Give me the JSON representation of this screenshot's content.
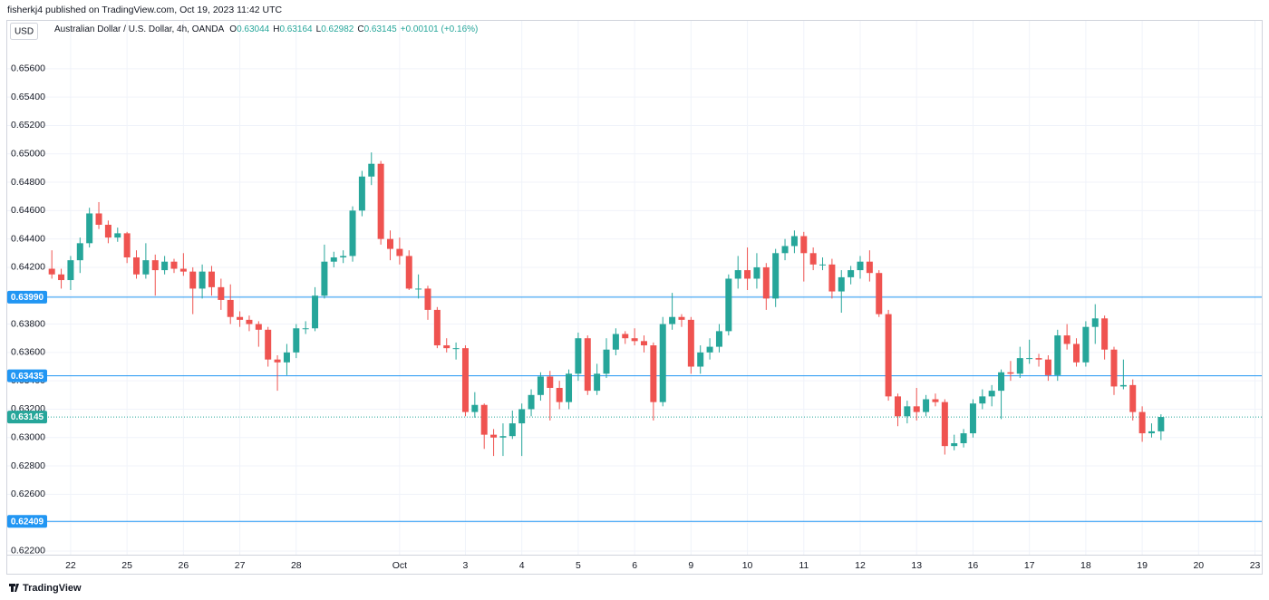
{
  "header": {
    "publisher": "fisherkj4 published on TradingView.com, Oct 19, 2023 11:42 UTC"
  },
  "chart_data": {
    "type": "candlestick",
    "currency": "USD",
    "symbol": "Australian Dollar / U.S. Dollar, 4h, OANDA",
    "legend": [
      {
        "key": "O",
        "value": "0.63044"
      },
      {
        "key": "H",
        "value": "0.63164"
      },
      {
        "key": "L",
        "value": "0.62982"
      },
      {
        "key": "C",
        "value": "0.63145"
      }
    ],
    "change": "+0.00101 (+0.16%)",
    "up_color": "#26a69a",
    "down_color": "#ef5350",
    "level_color": "#2196f3",
    "grid": true,
    "categories": [
      null,
      null,
      "22",
      null,
      null,
      null,
      null,
      null,
      "25",
      null,
      null,
      null,
      null,
      null,
      "26",
      null,
      null,
      null,
      null,
      null,
      "27",
      null,
      null,
      null,
      null,
      null,
      "28",
      null,
      null,
      null,
      null,
      null,
      null,
      null,
      null,
      null,
      null,
      "Oct",
      null,
      null,
      null,
      null,
      null,
      null,
      "3",
      null,
      null,
      null,
      null,
      null,
      "4",
      null,
      null,
      null,
      null,
      null,
      "5",
      null,
      null,
      null,
      null,
      null,
      "6",
      null,
      null,
      null,
      null,
      null,
      "9",
      null,
      null,
      null,
      null,
      null,
      "10",
      null,
      null,
      null,
      null,
      null,
      "11",
      null,
      null,
      null,
      null,
      null,
      "12",
      null,
      null,
      null,
      null,
      null,
      "13",
      null,
      null,
      null,
      null,
      null,
      "16",
      null,
      null,
      null,
      null,
      null,
      "17",
      null,
      null,
      null,
      null,
      null,
      "18",
      null,
      null,
      null,
      null,
      null,
      "19",
      null,
      null,
      null,
      null,
      null,
      "20",
      null,
      null,
      null,
      null,
      null,
      "23"
    ],
    "open": [
      0.6419,
      0.6415,
      0.6411,
      0.6425,
      0.6437,
      0.6458,
      0.645,
      0.6441,
      0.6444,
      0.6427,
      0.6415,
      0.6425,
      0.6418,
      0.6424,
      0.6419,
      0.6417,
      0.6405,
      0.6417,
      0.6406,
      0.6397,
      0.6385,
      0.6383,
      0.638,
      0.6376,
      0.6355,
      0.6353,
      0.636,
      0.6377,
      0.6377,
      0.64,
      0.6424,
      0.6427,
      0.6428,
      0.646,
      0.6484,
      0.6493,
      0.644,
      0.6433,
      0.6428,
      0.6405,
      0.6405,
      0.639,
      0.6365,
      0.6363,
      0.6363,
      0.6318,
      0.6323,
      0.6302,
      0.63,
      0.6301,
      0.631,
      0.632,
      0.633,
      0.6343,
      0.6335,
      0.6325,
      0.6345,
      0.637,
      0.6333,
      0.6345,
      0.6362,
      0.6373,
      0.637,
      0.6368,
      0.6365,
      0.6325,
      0.638,
      0.6385,
      0.6383,
      0.635,
      0.636,
      0.6364,
      0.6375,
      0.6412,
      0.6418,
      0.6412,
      0.642,
      0.6398,
      0.643,
      0.6435,
      0.6442,
      0.643,
      0.6422,
      0.6422,
      0.6403,
      0.6413,
      0.6418,
      0.6424,
      0.6416,
      0.6387,
      0.6329,
      0.6315,
      0.6322,
      0.6318,
      0.6327,
      0.6325,
      0.6294,
      0.6296,
      0.6303,
      0.6324,
      0.6329,
      0.6333,
      0.6346,
      0.6345,
      0.6356,
      0.6356,
      0.6355,
      0.6344,
      0.6372,
      0.6366,
      0.6353,
      0.6378,
      0.6384,
      0.6362,
      0.6336,
      0.6337,
      0.6318,
      0.6303,
      0.63044,
      null,
      null,
      null,
      null,
      null,
      null,
      null,
      null,
      null,
      null
    ],
    "high": [
      0.6432,
      0.6419,
      0.6428,
      0.6441,
      0.6462,
      0.6466,
      0.6453,
      0.6448,
      0.6445,
      0.6432,
      0.6437,
      0.6429,
      0.6428,
      0.6426,
      0.643,
      0.642,
      0.6422,
      0.6421,
      0.6412,
      0.6408,
      0.6389,
      0.6386,
      0.6382,
      0.6378,
      0.6358,
      0.6366,
      0.638,
      0.6382,
      0.6406,
      0.6436,
      0.6431,
      0.6432,
      0.6463,
      0.6488,
      0.6501,
      0.6495,
      0.6446,
      0.6441,
      0.6432,
      0.6415,
      0.6407,
      0.6392,
      0.637,
      0.6367,
      0.6365,
      0.6332,
      0.6324,
      0.6306,
      0.631,
      0.6319,
      0.6324,
      0.6334,
      0.6346,
      0.6347,
      0.634,
      0.6348,
      0.6374,
      0.6372,
      0.6352,
      0.637,
      0.6377,
      0.6375,
      0.6377,
      0.6372,
      0.6367,
      0.6385,
      0.6402,
      0.6387,
      0.6385,
      0.6365,
      0.637,
      0.638,
      0.6415,
      0.6428,
      0.6434,
      0.643,
      0.6423,
      0.6433,
      0.644,
      0.6446,
      0.6445,
      0.6434,
      0.6427,
      0.6426,
      0.6418,
      0.6421,
      0.6428,
      0.6432,
      0.6418,
      0.639,
      0.6331,
      0.6326,
      0.6335,
      0.633,
      0.6331,
      0.6327,
      0.6302,
      0.6306,
      0.6327,
      0.6334,
      0.6337,
      0.6348,
      0.6354,
      0.6364,
      0.6369,
      0.6359,
      0.6358,
      0.6376,
      0.638,
      0.637,
      0.6382,
      0.6394,
      0.6386,
      0.6364,
      0.6355,
      0.6341,
      0.6322,
      0.631,
      0.63164,
      null,
      null,
      null,
      null,
      null,
      null,
      null,
      null,
      null,
      null
    ],
    "low": [
      0.6412,
      0.6405,
      0.6404,
      0.6416,
      0.6434,
      0.6447,
      0.6437,
      0.6438,
      0.6423,
      0.6412,
      0.6412,
      0.64,
      0.6415,
      0.6416,
      0.6414,
      0.6387,
      0.6398,
      0.64,
      0.639,
      0.638,
      0.6378,
      0.6375,
      0.6364,
      0.635,
      0.6333,
      0.6344,
      0.6356,
      0.6373,
      0.6375,
      0.6398,
      0.642,
      0.6423,
      0.6424,
      0.6456,
      0.6478,
      0.6436,
      0.6425,
      0.6422,
      0.6404,
      0.6398,
      0.6383,
      0.6363,
      0.636,
      0.6355,
      0.6315,
      0.6314,
      0.6292,
      0.6287,
      0.6287,
      0.6299,
      0.6287,
      0.6315,
      0.6326,
      0.6312,
      0.632,
      0.632,
      0.634,
      0.633,
      0.633,
      0.6342,
      0.6358,
      0.6366,
      0.6365,
      0.636,
      0.6312,
      0.6322,
      0.6376,
      0.6378,
      0.6345,
      0.6345,
      0.6355,
      0.636,
      0.6372,
      0.6405,
      0.6404,
      0.6405,
      0.639,
      0.6392,
      0.6425,
      0.643,
      0.641,
      0.6418,
      0.6418,
      0.6398,
      0.6388,
      0.6408,
      0.6412,
      0.641,
      0.6385,
      0.6326,
      0.6308,
      0.631,
      0.6312,
      0.6315,
      0.6322,
      0.6288,
      0.6291,
      0.6293,
      0.63,
      0.632,
      0.6322,
      0.6313,
      0.634,
      0.6342,
      0.6352,
      0.635,
      0.634,
      0.634,
      0.6362,
      0.635,
      0.635,
      0.6366,
      0.6355,
      0.633,
      0.6334,
      0.6312,
      0.6297,
      0.63,
      0.62982,
      null,
      null,
      null,
      null,
      null,
      null,
      null,
      null,
      null,
      null
    ],
    "close": [
      0.6415,
      0.6411,
      0.6425,
      0.6437,
      0.6458,
      0.645,
      0.6441,
      0.6444,
      0.6427,
      0.6415,
      0.6425,
      0.6418,
      0.6424,
      0.6419,
      0.6417,
      0.6405,
      0.6417,
      0.6406,
      0.6397,
      0.6385,
      0.6383,
      0.638,
      0.6376,
      0.6355,
      0.6353,
      0.636,
      0.6377,
      0.6377,
      0.64,
      0.6424,
      0.6427,
      0.6428,
      0.646,
      0.6484,
      0.6493,
      0.644,
      0.6433,
      0.6428,
      0.6405,
      0.6405,
      0.639,
      0.6365,
      0.6363,
      0.6363,
      0.6318,
      0.6323,
      0.6302,
      0.63,
      0.6301,
      0.631,
      0.632,
      0.633,
      0.6343,
      0.6335,
      0.6325,
      0.6345,
      0.637,
      0.6333,
      0.6345,
      0.6362,
      0.6373,
      0.637,
      0.6368,
      0.6365,
      0.6325,
      0.638,
      0.6385,
      0.6383,
      0.635,
      0.636,
      0.6364,
      0.6375,
      0.6412,
      0.6418,
      0.6412,
      0.642,
      0.6398,
      0.643,
      0.6435,
      0.6442,
      0.643,
      0.6422,
      0.6422,
      0.6403,
      0.6413,
      0.6418,
      0.6424,
      0.6416,
      0.6387,
      0.6329,
      0.6315,
      0.6322,
      0.6318,
      0.6327,
      0.6325,
      0.6294,
      0.6296,
      0.6303,
      0.6324,
      0.6329,
      0.6333,
      0.6346,
      0.6345,
      0.6356,
      0.6356,
      0.6355,
      0.6344,
      0.6372,
      0.6366,
      0.6353,
      0.6378,
      0.6384,
      0.6362,
      0.6336,
      0.6337,
      0.6318,
      0.6303,
      0.63044,
      0.63145,
      null,
      null,
      null,
      null,
      null,
      null,
      null,
      null,
      null,
      null
    ],
    "ylim": [
      0.62187,
      0.65944
    ],
    "yticks": [
      {
        "value": 0.622,
        "label": "0.62200"
      },
      {
        "value": 0.624,
        "label": "0.62400"
      },
      {
        "value": 0.626,
        "label": "0.62600"
      },
      {
        "value": 0.628,
        "label": "0.62800"
      },
      {
        "value": 0.63,
        "label": "0.63000"
      },
      {
        "value": 0.632,
        "label": "0.63200"
      },
      {
        "value": 0.634,
        "label": "0.63400"
      },
      {
        "value": 0.636,
        "label": "0.63600"
      },
      {
        "value": 0.638,
        "label": "0.63800"
      },
      {
        "value": 0.64,
        "label": "0.64000"
      },
      {
        "value": 0.642,
        "label": "0.64200"
      },
      {
        "value": 0.644,
        "label": "0.64400"
      },
      {
        "value": 0.646,
        "label": "0.64600"
      },
      {
        "value": 0.648,
        "label": "0.64800"
      },
      {
        "value": 0.65,
        "label": "0.65000"
      },
      {
        "value": 0.652,
        "label": "0.65200"
      },
      {
        "value": 0.654,
        "label": "0.65400"
      },
      {
        "value": 0.656,
        "label": "0.65600"
      }
    ],
    "levels": [
      {
        "value": 0.6399,
        "label": "0.63990"
      },
      {
        "value": 0.63435,
        "label": "0.63435"
      },
      {
        "value": 0.62409,
        "label": "0.62409"
      }
    ],
    "last_price": {
      "value": 0.63145,
      "label": "0.63145"
    }
  },
  "footer": {
    "brand": "TradingView"
  }
}
